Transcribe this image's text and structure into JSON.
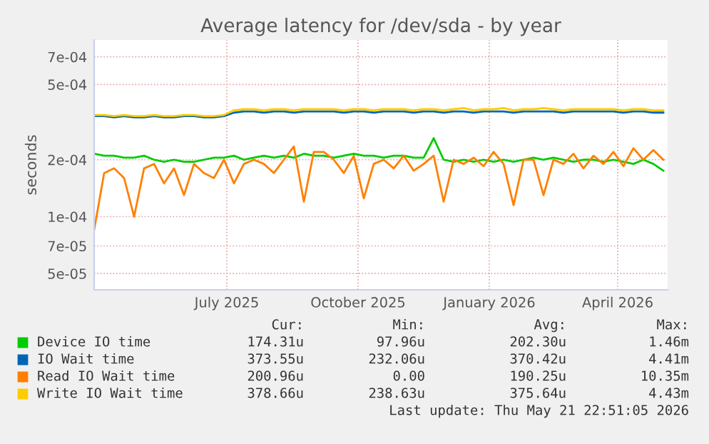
{
  "chart_data": {
    "type": "line",
    "title": "Average latency for /dev/sda - by year",
    "ylabel": "seconds",
    "log": "y",
    "ylim": [
      4.1e-05,
      0.00086
    ],
    "yticks": [
      {
        "value": 5e-05,
        "label": "5e-05"
      },
      {
        "value": 7e-05,
        "label": "7e-05"
      },
      {
        "value": 0.0001,
        "label": "1e-04"
      },
      {
        "value": 0.0002,
        "label": "2e-04"
      },
      {
        "value": 0.0005,
        "label": "5e-04"
      },
      {
        "value": 0.0007,
        "label": "7e-04"
      }
    ],
    "xlim": [
      "2025-04-14",
      "2026-05-21"
    ],
    "xticks": [
      {
        "value": "2025-07-16",
        "label": "July 2025"
      },
      {
        "value": "2025-10-16",
        "label": "October 2025"
      },
      {
        "value": "2026-01-16",
        "label": "January 2026"
      },
      {
        "value": "2026-04-16",
        "label": "April 2026"
      }
    ],
    "grid": true,
    "legend": "bottom",
    "marker": "none",
    "line_style": "solid",
    "x": [
      "2025-04-14",
      "2025-04-21",
      "2025-04-28",
      "2025-05-05",
      "2025-05-12",
      "2025-05-19",
      "2025-05-26",
      "2025-06-02",
      "2025-06-09",
      "2025-06-16",
      "2025-06-23",
      "2025-06-30",
      "2025-07-07",
      "2025-07-14",
      "2025-07-21",
      "2025-07-28",
      "2025-08-04",
      "2025-08-11",
      "2025-08-18",
      "2025-08-25",
      "2025-09-01",
      "2025-09-08",
      "2025-09-15",
      "2025-09-22",
      "2025-09-29",
      "2025-10-06",
      "2025-10-13",
      "2025-10-20",
      "2025-10-27",
      "2025-11-03",
      "2025-11-10",
      "2025-11-17",
      "2025-11-24",
      "2025-12-01",
      "2025-12-08",
      "2025-12-15",
      "2025-12-22",
      "2025-12-29",
      "2026-01-05",
      "2026-01-12",
      "2026-01-19",
      "2026-01-26",
      "2026-02-02",
      "2026-02-09",
      "2026-02-16",
      "2026-02-23",
      "2026-03-02",
      "2026-03-09",
      "2026-03-16",
      "2026-03-23",
      "2026-03-30",
      "2026-04-06",
      "2026-04-13",
      "2026-04-20",
      "2026-04-27",
      "2026-05-04",
      "2026-05-11",
      "2026-05-18"
    ],
    "series": [
      {
        "name": "Device IO time",
        "color": "#00cc00",
        "values": [
          0.000215,
          0.00021,
          0.00021,
          0.000205,
          0.000205,
          0.00021,
          0.0002,
          0.000195,
          0.0002,
          0.000195,
          0.000195,
          0.0002,
          0.000205,
          0.000205,
          0.00021,
          0.0002,
          0.000205,
          0.00021,
          0.000205,
          0.00021,
          0.000205,
          0.000215,
          0.00021,
          0.00021,
          0.000205,
          0.00021,
          0.000215,
          0.00021,
          0.00021,
          0.000205,
          0.00021,
          0.00021,
          0.000205,
          0.000205,
          0.00026,
          0.0002,
          0.000195,
          0.0002,
          0.000195,
          0.0002,
          0.000195,
          0.0002,
          0.000195,
          0.0002,
          0.000205,
          0.0002,
          0.000205,
          0.0002,
          0.000195,
          0.0002,
          0.0002,
          0.000195,
          0.0002,
          0.000195,
          0.00019,
          0.0002,
          0.00019,
          0.000175
        ]
      },
      {
        "name": "IO Wait time",
        "color": "#0066b3",
        "values": [
          0.00034,
          0.00034,
          0.000335,
          0.00034,
          0.000335,
          0.000335,
          0.00034,
          0.000335,
          0.000335,
          0.00034,
          0.00034,
          0.000335,
          0.000335,
          0.00034,
          0.000355,
          0.00036,
          0.00036,
          0.000355,
          0.00036,
          0.00036,
          0.000355,
          0.00036,
          0.00036,
          0.00036,
          0.00036,
          0.000355,
          0.00036,
          0.00036,
          0.000355,
          0.00036,
          0.00036,
          0.00036,
          0.000355,
          0.00036,
          0.00036,
          0.000355,
          0.00036,
          0.00036,
          0.000355,
          0.00036,
          0.00036,
          0.00036,
          0.000355,
          0.00036,
          0.00036,
          0.00036,
          0.00036,
          0.000355,
          0.00036,
          0.00036,
          0.00036,
          0.00036,
          0.00036,
          0.000355,
          0.00036,
          0.00036,
          0.000355,
          0.000355
        ]
      },
      {
        "name": "Read IO Wait time",
        "color": "#ff8000",
        "values": [
          8.5e-05,
          0.00017,
          0.00018,
          0.00016,
          0.0001,
          0.00018,
          0.00019,
          0.00015,
          0.00018,
          0.00013,
          0.00019,
          0.00017,
          0.00016,
          0.0002,
          0.00015,
          0.00019,
          0.0002,
          0.00019,
          0.00017,
          0.0002,
          0.000235,
          0.00012,
          0.00022,
          0.00022,
          0.0002,
          0.00017,
          0.00021,
          0.000125,
          0.00019,
          0.0002,
          0.00018,
          0.00021,
          0.000175,
          0.00019,
          0.00021,
          0.00012,
          0.0002,
          0.00019,
          0.000205,
          0.000185,
          0.00022,
          0.00019,
          0.000115,
          0.0002,
          0.0002,
          0.00013,
          0.0002,
          0.00019,
          0.000215,
          0.00018,
          0.00021,
          0.00019,
          0.00022,
          0.000185,
          0.00023,
          0.0002,
          0.000225,
          0.0002
        ]
      },
      {
        "name": "Write IO Wait time",
        "color": "#ffcc00",
        "values": [
          0.000345,
          0.000345,
          0.00034,
          0.000345,
          0.00034,
          0.00034,
          0.000345,
          0.00034,
          0.00034,
          0.000345,
          0.000345,
          0.00034,
          0.00034,
          0.000345,
          0.000365,
          0.00037,
          0.00037,
          0.000365,
          0.00037,
          0.00037,
          0.000365,
          0.00037,
          0.00037,
          0.00037,
          0.00037,
          0.000365,
          0.00037,
          0.00037,
          0.000365,
          0.00037,
          0.00037,
          0.00037,
          0.000365,
          0.00037,
          0.00037,
          0.000365,
          0.00037,
          0.000375,
          0.000365,
          0.00037,
          0.00037,
          0.000375,
          0.000365,
          0.00037,
          0.00037,
          0.000375,
          0.00037,
          0.000365,
          0.00037,
          0.00037,
          0.00037,
          0.00037,
          0.00037,
          0.000365,
          0.00037,
          0.00037,
          0.000365,
          0.000365
        ]
      }
    ],
    "annotations": [
      "Cur:",
      "Min:",
      "Avg:",
      "Max:",
      "174.31u",
      "97.96u",
      "202.30u",
      "1.46m",
      "373.55u",
      "232.06u",
      "370.42u",
      "4.41m",
      "200.96u",
      "0.00",
      "190.25u",
      "10.35m",
      "378.66u",
      "238.63u",
      "375.64u",
      "4.43m",
      "Last update: Thu May 21 22:51:05 2026"
    ]
  }
}
